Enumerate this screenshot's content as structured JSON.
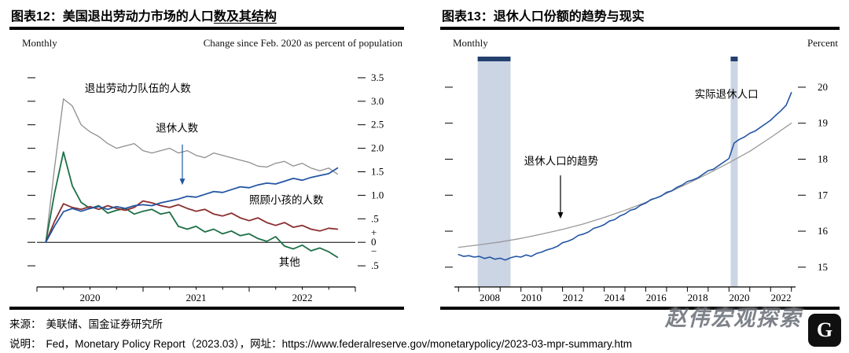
{
  "panels": [
    {
      "title_prefix": "图表12：美国退出劳动力市场的人口",
      "title_underline": "数及其结构",
      "header_left": "Monthly",
      "header_right": "Change since Feb. 2020 as percent of population"
    },
    {
      "title_prefix": "图表13：退休人口份额的趋势与现实",
      "title_underline": "",
      "header_left": "Monthly",
      "header_right": "Percent"
    }
  ],
  "footer": {
    "source_label": "来源：",
    "source_text": "美联储、国金证券研究所",
    "note_label": "说明：",
    "note_prefix": "Fed，Monetary Policy Report（2023.03），网址：",
    "note_url": "https://www.federalreserve.gov/monetarypolicy/2023-03-mpr-summary.htm"
  },
  "watermark": {
    "text": "赵伟宏观探索",
    "logo_letter": "G"
  },
  "chart_data": [
    {
      "type": "line",
      "title": "美国退出劳动力市场的人口数及其结构",
      "freq_label": "Monthly",
      "unit_label": "Change since Feb. 2020 as percent of population",
      "xlim": [
        2020.0,
        2023.0
      ],
      "ylim": [
        -0.95,
        3.95
      ],
      "zero_line": true,
      "colors": {
        "band": "#ccd5e4",
        "band_cap": "#23406e"
      },
      "x_major": [
        2020,
        2021,
        2022,
        2023
      ],
      "x_minor": [
        2020.25,
        2020.5,
        2020.75,
        2021.25,
        2021.5,
        2021.75,
        2022.25,
        2022.5,
        2022.75
      ],
      "x_labels": [
        {
          "v": 2020.5,
          "l": "2020"
        },
        {
          "v": 2021.5,
          "l": "2021"
        },
        {
          "v": 2022.5,
          "l": "2022"
        }
      ],
      "y_dashes": [
        3.5,
        3.0,
        2.5,
        2.0,
        1.5,
        1.0,
        0.5,
        0,
        -0.5
      ],
      "y_labels": [
        {
          "v": 3.5,
          "l": "3.5"
        },
        {
          "v": 3.0,
          "l": "3.0"
        },
        {
          "v": 2.5,
          "l": "2.5"
        },
        {
          "v": 2.0,
          "l": "2.0"
        },
        {
          "v": 1.5,
          "l": "1.5"
        },
        {
          "v": 1.0,
          "l": "1.0"
        },
        {
          "v": 0.5,
          "l": ".5"
        },
        {
          "v": 0.2,
          "l": "+"
        },
        {
          "v": 0,
          "l": "0"
        },
        {
          "v": -0.2,
          "l": "−"
        },
        {
          "v": -0.5,
          "l": ".5"
        }
      ],
      "series": [
        {
          "name": "退出劳动力队伍的人数",
          "color": "#8f8f8f",
          "width": 1.3,
          "x0": 2020.0833,
          "dx": 0.0833,
          "values": [
            0,
            1.6,
            3.05,
            2.9,
            2.5,
            2.35,
            2.25,
            2.1,
            2.0,
            2.05,
            2.1,
            1.95,
            1.9,
            1.95,
            2.0,
            1.9,
            1.95,
            1.85,
            1.8,
            1.9,
            1.85,
            1.8,
            1.75,
            1.7,
            1.62,
            1.6,
            1.68,
            1.72,
            1.62,
            1.68,
            1.58,
            1.52,
            1.58,
            1.45
          ]
        },
        {
          "name": "其他",
          "color": "#1e7046",
          "width": 1.8,
          "x0": 2020.0833,
          "dx": 0.0833,
          "values": [
            0,
            1.05,
            1.92,
            1.2,
            0.85,
            0.72,
            0.78,
            0.62,
            0.68,
            0.72,
            0.6,
            0.66,
            0.7,
            0.6,
            0.64,
            0.34,
            0.28,
            0.34,
            0.22,
            0.28,
            0.18,
            0.24,
            0.14,
            0.18,
            0.08,
            0.02,
            0.12,
            -0.08,
            -0.14,
            -0.06,
            -0.18,
            -0.12,
            -0.2,
            -0.32
          ]
        },
        {
          "name": "照顾小孩的人数",
          "color": "#8b2f2f",
          "width": 1.8,
          "x0": 2020.0833,
          "dx": 0.0833,
          "values": [
            0,
            0.45,
            0.82,
            0.74,
            0.7,
            0.76,
            0.7,
            0.78,
            0.72,
            0.68,
            0.74,
            0.88,
            0.84,
            0.78,
            0.74,
            0.8,
            0.72,
            0.66,
            0.7,
            0.6,
            0.56,
            0.62,
            0.52,
            0.46,
            0.52,
            0.42,
            0.36,
            0.42,
            0.32,
            0.36,
            0.28,
            0.24,
            0.3,
            0.28
          ]
        },
        {
          "name": "退休人数",
          "color": "#2456a4",
          "width": 1.8,
          "x0": 2020.0833,
          "dx": 0.0833,
          "values": [
            0,
            0.35,
            0.65,
            0.72,
            0.66,
            0.72,
            0.76,
            0.7,
            0.76,
            0.72,
            0.78,
            0.8,
            0.78,
            0.84,
            0.88,
            0.92,
            0.98,
            0.96,
            1.02,
            1.08,
            1.06,
            1.12,
            1.18,
            1.16,
            1.22,
            1.26,
            1.24,
            1.3,
            1.36,
            1.32,
            1.38,
            1.42,
            1.46,
            1.58
          ]
        }
      ],
      "annotations": [
        {
          "text": "退出劳动力队伍的人数",
          "x": 2020.45,
          "y": 3.2
        },
        {
          "text": "退休人数",
          "x": 2021.12,
          "y": 2.35
        },
        {
          "text": "照顾小孩的人数",
          "x": 2022.0,
          "y": 0.82
        },
        {
          "text": "其他",
          "x": 2022.28,
          "y": -0.5
        }
      ],
      "arrows": [
        {
          "x": 2021.37,
          "y1": 2.08,
          "y2": 1.22,
          "color": "#2456a4"
        }
      ]
    },
    {
      "type": "line",
      "title": "退休人口份额的趋势与现实",
      "freq_label": "Monthly",
      "unit_label": "Percent",
      "xlim": [
        2006.8,
        2023.2
      ],
      "ylim": [
        14.45,
        20.85
      ],
      "zero_line": false,
      "colors": {
        "band": "#ccd5e4",
        "band_cap": "#23406e"
      },
      "bands": [
        {
          "x0": 2007.92,
          "x1": 2009.5
        },
        {
          "x0": 2020.08,
          "x1": 2020.42
        }
      ],
      "x_major": [
        2007,
        2008,
        2009,
        2010,
        2011,
        2012,
        2013,
        2014,
        2015,
        2016,
        2017,
        2018,
        2019,
        2020,
        2021,
        2022,
        2023
      ],
      "x_minor": [],
      "x_labels": [
        {
          "v": 2008.5,
          "l": "2008"
        },
        {
          "v": 2010.5,
          "l": "2010"
        },
        {
          "v": 2012.5,
          "l": "2012"
        },
        {
          "v": 2014.5,
          "l": "2014"
        },
        {
          "v": 2016.5,
          "l": "2016"
        },
        {
          "v": 2018.5,
          "l": "2018"
        },
        {
          "v": 2020.5,
          "l": "2020"
        },
        {
          "v": 2022.5,
          "l": "2022"
        }
      ],
      "y_dashes": [
        15,
        16,
        17,
        18,
        19,
        20
      ],
      "y_labels": [
        {
          "v": 20,
          "l": "20"
        },
        {
          "v": 19,
          "l": "19"
        },
        {
          "v": 18,
          "l": "18"
        },
        {
          "v": 17,
          "l": "17"
        },
        {
          "v": 16,
          "l": "16"
        },
        {
          "v": 15,
          "l": "15"
        }
      ],
      "series": [
        {
          "name": "退休人口的趋势",
          "color": "#9a9a9a",
          "width": 1.3,
          "x0": 2007,
          "dx": 1,
          "values": [
            15.55,
            15.62,
            15.7,
            15.8,
            15.92,
            16.05,
            16.2,
            16.38,
            16.58,
            16.8,
            17.05,
            17.32,
            17.6,
            17.9,
            18.22,
            18.6,
            19.0
          ]
        },
        {
          "name": "实际退休人口",
          "color": "#2456a4",
          "width": 1.6,
          "x0": 2007,
          "dx": 0.25,
          "values": [
            15.35,
            15.3,
            15.32,
            15.28,
            15.3,
            15.24,
            15.28,
            15.22,
            15.25,
            15.2,
            15.26,
            15.3,
            15.28,
            15.34,
            15.3,
            15.38,
            15.42,
            15.48,
            15.52,
            15.58,
            15.68,
            15.72,
            15.78,
            15.88,
            15.92,
            15.98,
            16.08,
            16.12,
            16.18,
            16.28,
            16.32,
            16.42,
            16.48,
            16.58,
            16.62,
            16.72,
            16.78,
            16.88,
            16.92,
            16.98,
            17.08,
            17.12,
            17.22,
            17.28,
            17.38,
            17.42,
            17.48,
            17.58,
            17.68,
            17.72,
            17.82,
            17.92,
            18.02,
            18.45,
            18.55,
            18.62,
            18.72,
            18.78,
            18.88,
            18.98,
            19.08,
            19.22,
            19.35,
            19.5,
            19.85
          ]
        }
      ],
      "annotations": [
        {
          "text": "实际退休人口",
          "x": 2018.35,
          "y": 19.7
        },
        {
          "text": "退休人口的趋势",
          "x": 2010.15,
          "y": 17.85
        }
      ],
      "arrows": [
        {
          "x": 2011.9,
          "y1": 17.55,
          "y2": 16.35,
          "color": "#000000"
        }
      ]
    }
  ]
}
